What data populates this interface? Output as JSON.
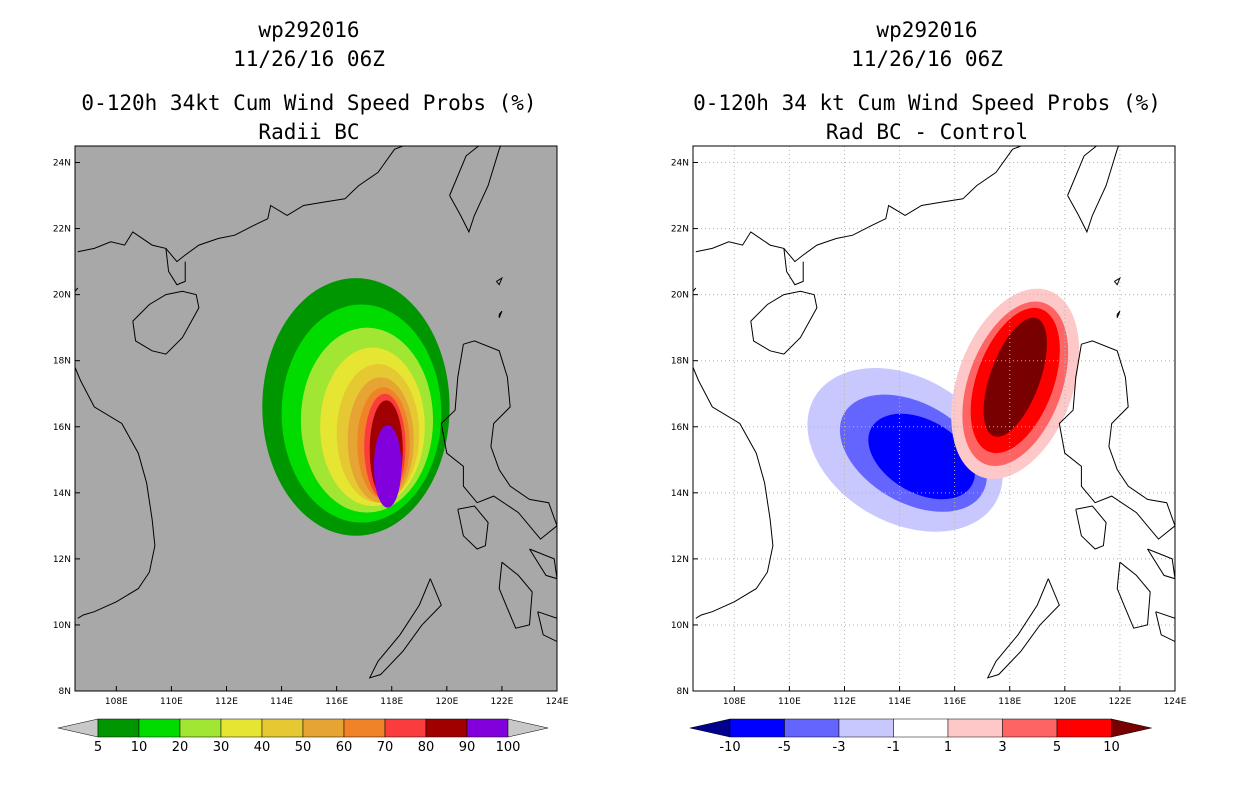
{
  "chart_data": [
    {
      "type": "heatmap",
      "id": "cumprob",
      "storm_id": "wp292016",
      "datetime": "11/26/16 06Z",
      "title": "0-120h 34kt Cum Wind Speed Probs (%)",
      "subtitle": "Radii BC",
      "background": "#a8a8a8",
      "grid": false,
      "xlim": [
        106.5,
        124
      ],
      "ylim": [
        8,
        24.5
      ],
      "x_ticks": [
        "108E",
        "110E",
        "112E",
        "114E",
        "116E",
        "118E",
        "120E",
        "122E",
        "124E"
      ],
      "y_ticks": [
        "8N",
        "10N",
        "12N",
        "14N",
        "16N",
        "18N",
        "20N",
        "22N",
        "24N"
      ],
      "colorbar": {
        "labels": [
          "5",
          "10",
          "20",
          "30",
          "40",
          "50",
          "60",
          "70",
          "80",
          "90",
          "100"
        ],
        "colors": [
          "#009600",
          "#00dc00",
          "#a0e632",
          "#e6e632",
          "#e6c832",
          "#e6a532",
          "#f08228",
          "#fa3c3c",
          "#a00000",
          "#8200dc"
        ],
        "extend_left": "#c8c8c8",
        "extend_right": "#c8c8c8"
      },
      "contours": [
        {
          "level": 5,
          "center": [
            116.7,
            16.6
          ],
          "rx": 3.4,
          "ry": 3.9
        },
        {
          "level": 10,
          "center": [
            116.9,
            16.4
          ],
          "rx": 2.9,
          "ry": 3.3
        },
        {
          "level": 20,
          "center": [
            117.1,
            16.2
          ],
          "rx": 2.4,
          "ry": 2.8
        },
        {
          "level": 30,
          "center": [
            117.3,
            16.0
          ],
          "rx": 1.9,
          "ry": 2.4
        },
        {
          "level": 40,
          "center": [
            117.5,
            15.8
          ],
          "rx": 1.5,
          "ry": 2.1
        },
        {
          "level": 50,
          "center": [
            117.6,
            15.6
          ],
          "rx": 1.2,
          "ry": 1.9
        },
        {
          "level": 60,
          "center": [
            117.7,
            15.5
          ],
          "rx": 0.95,
          "ry": 1.7
        },
        {
          "level": 70,
          "center": [
            117.75,
            15.4
          ],
          "rx": 0.75,
          "ry": 1.6
        },
        {
          "level": 80,
          "center": [
            117.8,
            15.3
          ],
          "rx": 0.6,
          "ry": 1.5
        },
        {
          "level": 90,
          "center": [
            117.85,
            14.8
          ],
          "rx": 0.5,
          "ry": 1.25
        }
      ]
    },
    {
      "type": "heatmap",
      "id": "diff",
      "storm_id": "wp292016",
      "datetime": "11/26/16 06Z",
      "title": "0-120h 34 kt Cum Wind Speed Probs (%)",
      "subtitle": "Rad BC - Control",
      "background": "#ffffff",
      "grid": true,
      "xlim": [
        106.5,
        124
      ],
      "ylim": [
        8,
        24.5
      ],
      "x_ticks": [
        "108E",
        "110E",
        "112E",
        "114E",
        "116E",
        "118E",
        "120E",
        "122E",
        "124E"
      ],
      "y_ticks": [
        "8N",
        "10N",
        "12N",
        "14N",
        "16N",
        "18N",
        "20N",
        "22N",
        "24N"
      ],
      "colorbar": {
        "labels": [
          "-10",
          "-5",
          "-3",
          "-1",
          "1",
          "3",
          "5",
          "10"
        ],
        "colors": [
          "#0000ff",
          "#6464ff",
          "#c8c8ff",
          "#ffffff",
          "#ffc8c8",
          "#ff6464",
          "#ff0000"
        ],
        "extend_left": "#00008c",
        "extend_right": "#780000"
      },
      "contours": [
        {
          "level": -1,
          "center": [
            114.2,
            15.3
          ],
          "rx": 3.8,
          "ry": 2.2,
          "rotate": 30
        },
        {
          "level": -3,
          "center": [
            114.5,
            15.2
          ],
          "rx": 2.9,
          "ry": 1.5,
          "rotate": 30
        },
        {
          "level": -5,
          "center": [
            114.8,
            15.1
          ],
          "rx": 2.1,
          "ry": 1.1,
          "rotate": 30
        },
        {
          "level": 1,
          "center": [
            118.2,
            17.3
          ],
          "rx": 2.1,
          "ry": 3.0,
          "rotate": 20
        },
        {
          "level": 3,
          "center": [
            118.2,
            17.3
          ],
          "rx": 1.7,
          "ry": 2.6,
          "rotate": 20
        },
        {
          "level": 5,
          "center": [
            118.2,
            17.4
          ],
          "rx": 1.4,
          "ry": 2.3,
          "rotate": 20
        },
        {
          "level": 10,
          "center": [
            118.2,
            17.5
          ],
          "rx": 0.9,
          "ry": 1.9,
          "rotate": 20
        }
      ]
    }
  ]
}
